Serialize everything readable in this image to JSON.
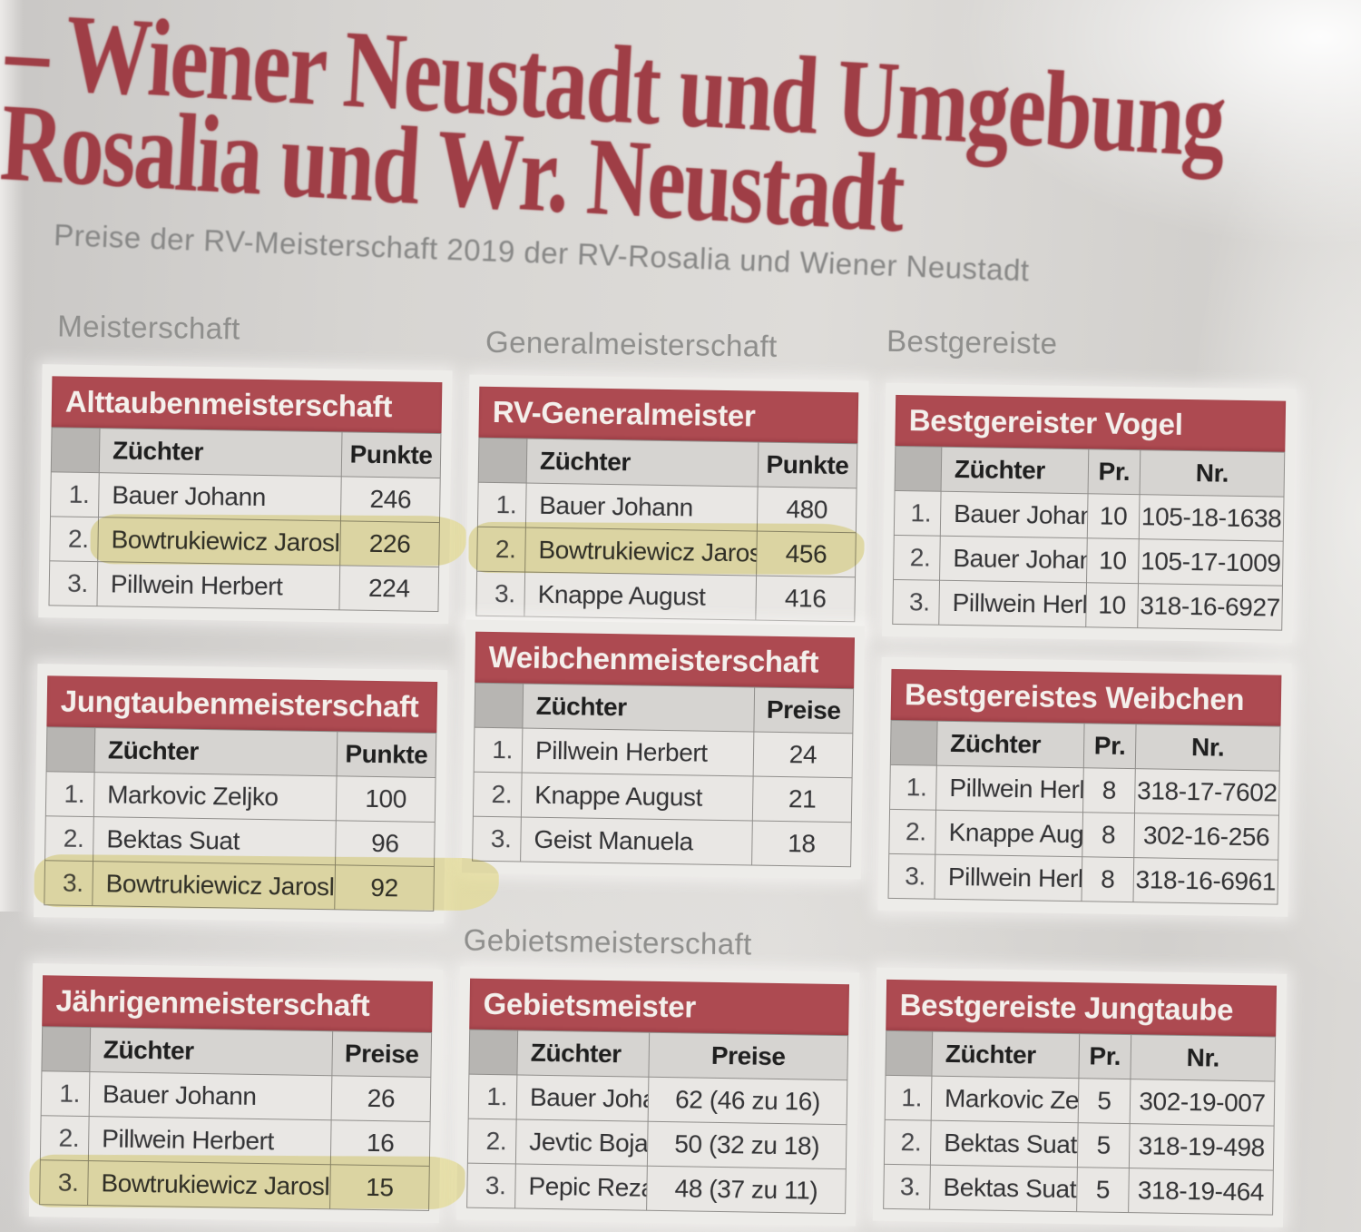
{
  "title": {
    "line1": "– Wiener Neustadt und Umgebung",
    "line2": "Rosalia und Wr. Neustadt"
  },
  "subtitle": "Preise der RV-Meisterschaft 2019 der RV-Rosalia und Wiener Neustadt",
  "section_labels": {
    "meisterschaft": "Meisterschaft",
    "generalmeisterschaft": "Generalmeisterschaft",
    "bestgereiste": "Bestgereiste",
    "gebietsmeisterschaft": "Gebietsmeisterschaft"
  },
  "colors": {
    "accent_red": "#ad4a51",
    "title_red": "#9f3e46",
    "highlight_yellow": "#e3d878",
    "page_gray": "#d5d3d0"
  },
  "tables": [
    {
      "title": "Alttaubenmeisterschaft",
      "headers": [
        "Züchter",
        "Punkte"
      ],
      "rows": [
        {
          "rank": "1.",
          "cells": [
            "Bauer Johann",
            "246"
          ],
          "highlighted": false
        },
        {
          "rank": "2.",
          "cells": [
            "Bowtrukiewicz Jaroslav",
            "226"
          ],
          "highlighted": true
        },
        {
          "rank": "3.",
          "cells": [
            "Pillwein Herbert",
            "224"
          ],
          "highlighted": false
        }
      ]
    },
    {
      "title": "RV-Generalmeister",
      "headers": [
        "Züchter",
        "Punkte"
      ],
      "rows": [
        {
          "rank": "1.",
          "cells": [
            "Bauer Johann",
            "480"
          ],
          "highlighted": false
        },
        {
          "rank": "2.",
          "cells": [
            "Bowtrukiewicz Jaroslav",
            "456"
          ],
          "highlighted": true
        },
        {
          "rank": "3.",
          "cells": [
            "Knappe August",
            "416"
          ],
          "highlighted": false
        }
      ]
    },
    {
      "title": "Bestgereister Vogel",
      "headers": [
        "Züchter",
        "Pr.",
        "Nr."
      ],
      "rows": [
        {
          "rank": "1.",
          "cells": [
            "Bauer Johann",
            "10",
            "105-18-1638"
          ],
          "highlighted": false
        },
        {
          "rank": "2.",
          "cells": [
            "Bauer Johann",
            "10",
            "105-17-1009"
          ],
          "highlighted": false
        },
        {
          "rank": "3.",
          "cells": [
            "Pillwein Herbert",
            "10",
            "318-16-6927"
          ],
          "highlighted": false
        }
      ]
    },
    {
      "title": "Jungtaubenmeisterschaft",
      "headers": [
        "Züchter",
        "Punkte"
      ],
      "rows": [
        {
          "rank": "1.",
          "cells": [
            "Markovic Zeljko",
            "100"
          ],
          "highlighted": false
        },
        {
          "rank": "2.",
          "cells": [
            "Bektas Suat",
            "96"
          ],
          "highlighted": false
        },
        {
          "rank": "3.",
          "cells": [
            "Bowtrukiewicz Jaroslav",
            "92"
          ],
          "highlighted": true
        }
      ]
    },
    {
      "title": "Weibchenmeisterschaft",
      "headers": [
        "Züchter",
        "Preise"
      ],
      "rows": [
        {
          "rank": "1.",
          "cells": [
            "Pillwein Herbert",
            "24"
          ],
          "highlighted": false
        },
        {
          "rank": "2.",
          "cells": [
            "Knappe August",
            "21"
          ],
          "highlighted": false
        },
        {
          "rank": "3.",
          "cells": [
            "Geist Manuela",
            "18"
          ],
          "highlighted": false
        }
      ]
    },
    {
      "title": "Bestgereistes Weibchen",
      "headers": [
        "Züchter",
        "Pr.",
        "Nr."
      ],
      "rows": [
        {
          "rank": "1.",
          "cells": [
            "Pillwein Herbert",
            "8",
            "318-17-7602"
          ],
          "highlighted": false
        },
        {
          "rank": "2.",
          "cells": [
            "Knappe August",
            "8",
            "302-16-256"
          ],
          "highlighted": false
        },
        {
          "rank": "3.",
          "cells": [
            "Pillwein Herbert",
            "8",
            "318-16-6961"
          ],
          "highlighted": false
        }
      ]
    },
    {
      "title": "Jährigenmeisterschaft",
      "headers": [
        "Züchter",
        "Preise"
      ],
      "rows": [
        {
          "rank": "1.",
          "cells": [
            "Bauer Johann",
            "26"
          ],
          "highlighted": false
        },
        {
          "rank": "2.",
          "cells": [
            "Pillwein Herbert",
            "16"
          ],
          "highlighted": false
        },
        {
          "rank": "3.",
          "cells": [
            "Bowtrukiewicz Jaroslav",
            "15"
          ],
          "highlighted": true
        }
      ]
    },
    {
      "title": "Gebietsmeister",
      "headers": [
        "Züchter",
        "Preise"
      ],
      "rows": [
        {
          "rank": "1.",
          "cells": [
            "Bauer Johann",
            "62 (46 zu 16)"
          ],
          "highlighted": false
        },
        {
          "rank": "2.",
          "cells": [
            "Jevtic Bojan",
            "50 (32 zu 18)"
          ],
          "highlighted": false
        },
        {
          "rank": "3.",
          "cells": [
            "Pepic Rezad",
            "48 (37 zu 11)"
          ],
          "highlighted": false
        }
      ]
    },
    {
      "title": "Bestgereiste Jungtaube",
      "headers": [
        "Züchter",
        "Pr.",
        "Nr."
      ],
      "rows": [
        {
          "rank": "1.",
          "cells": [
            "Markovic Zeljko",
            "5",
            "302-19-007"
          ],
          "highlighted": false
        },
        {
          "rank": "2.",
          "cells": [
            "Bektas Suat",
            "5",
            "318-19-498"
          ],
          "highlighted": false
        },
        {
          "rank": "3.",
          "cells": [
            "Bektas Suat",
            "5",
            "318-19-464"
          ],
          "highlighted": false
        }
      ]
    }
  ]
}
